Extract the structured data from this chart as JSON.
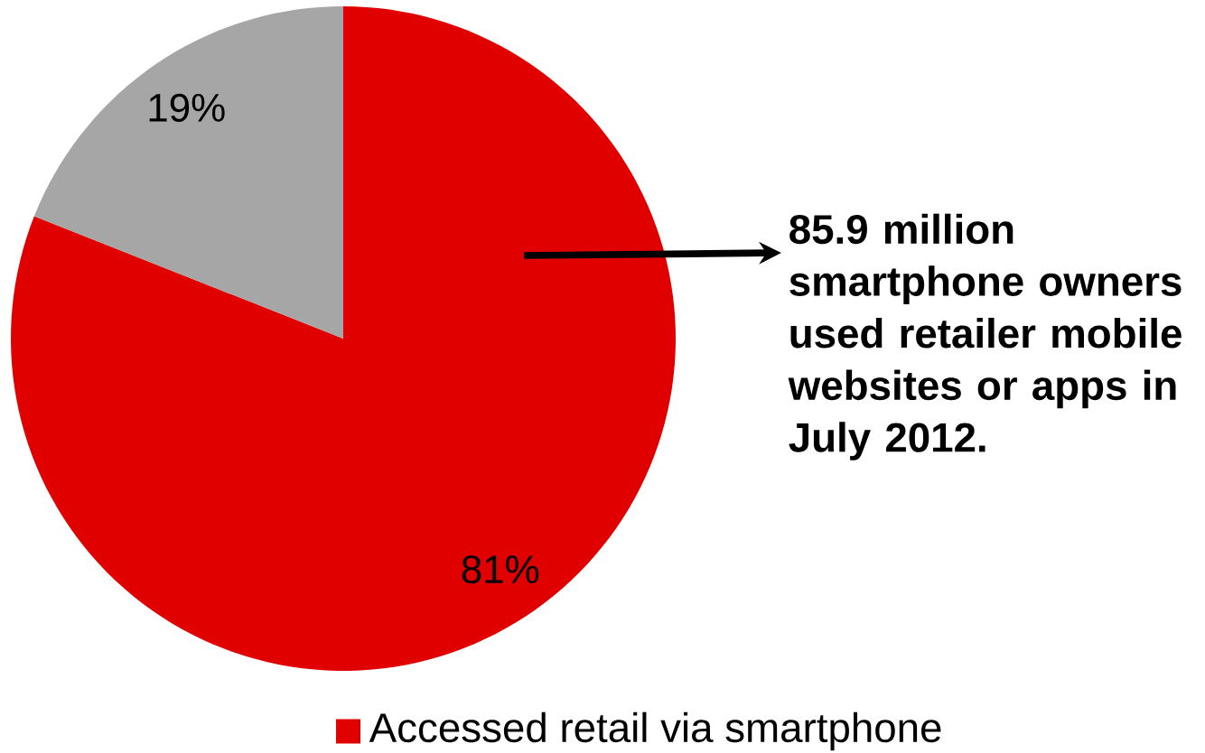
{
  "chart_data": {
    "type": "pie",
    "categories": [
      "Accessed retail via smartphone",
      null
    ],
    "values": [
      81,
      19
    ],
    "colors": [
      "#e00000",
      "#a6a6a6"
    ],
    "value_labels": [
      "81%",
      "19%"
    ],
    "legend": "bottom",
    "annotations": [
      "85.9 million smartphone owners used retailer mobile websites or apps in July 2012."
    ]
  }
}
